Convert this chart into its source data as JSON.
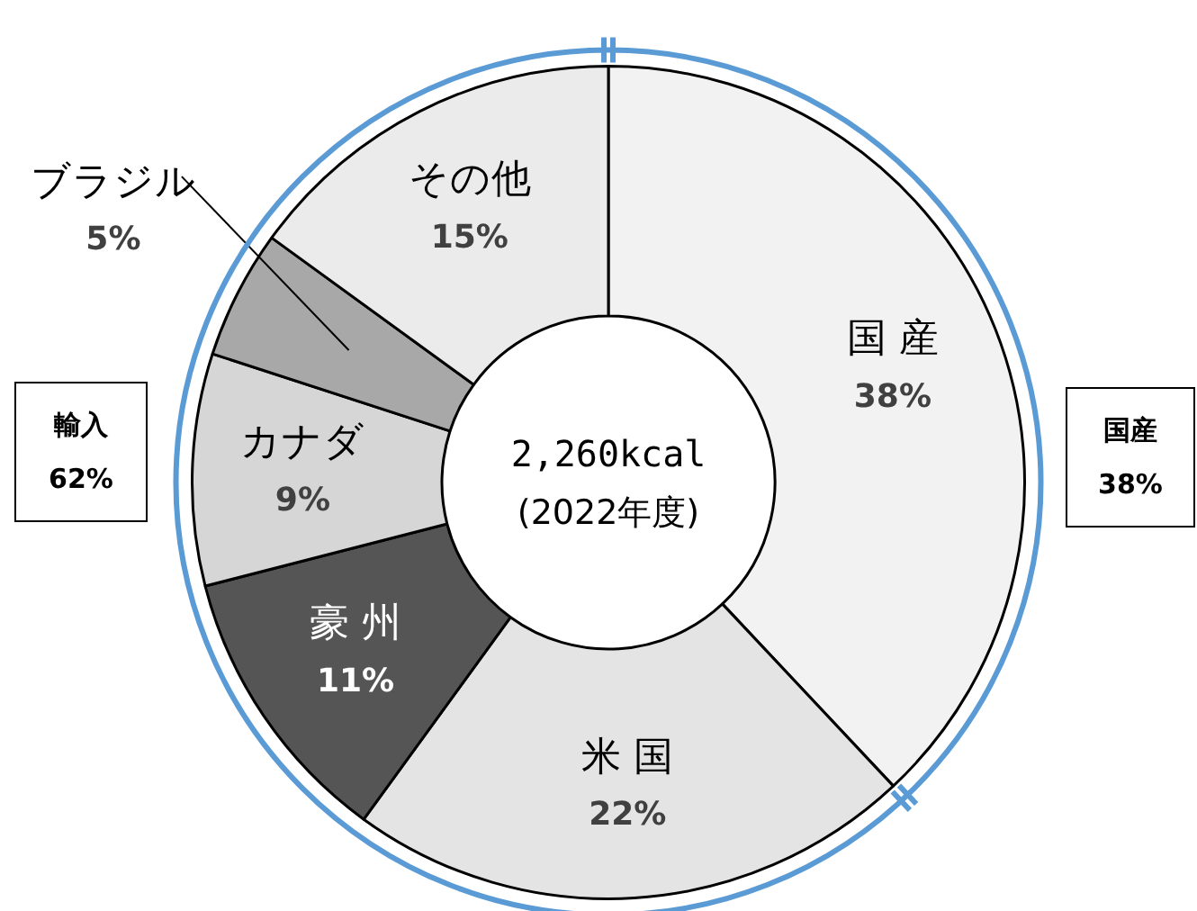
{
  "chart_data": {
    "type": "donut",
    "title": "2,260kcal",
    "subtitle": "(2022年度)",
    "categories": [
      "国 産",
      "米 国",
      "豪 州",
      "カナダ",
      "ブラジル",
      "その他"
    ],
    "values": [
      38,
      22,
      11,
      9,
      5,
      15
    ],
    "colors": [
      "#f2f2f2",
      "#e4e4e4",
      "#555555",
      "#d6d6d6",
      "#a8a8a8",
      "#ebebeb"
    ],
    "value_labels": [
      "38%",
      "22%",
      "11%",
      "9%",
      "5%",
      "15%"
    ],
    "annotations": [
      "輸入\n62%",
      "国産\n38%"
    ],
    "legend": false
  }
}
